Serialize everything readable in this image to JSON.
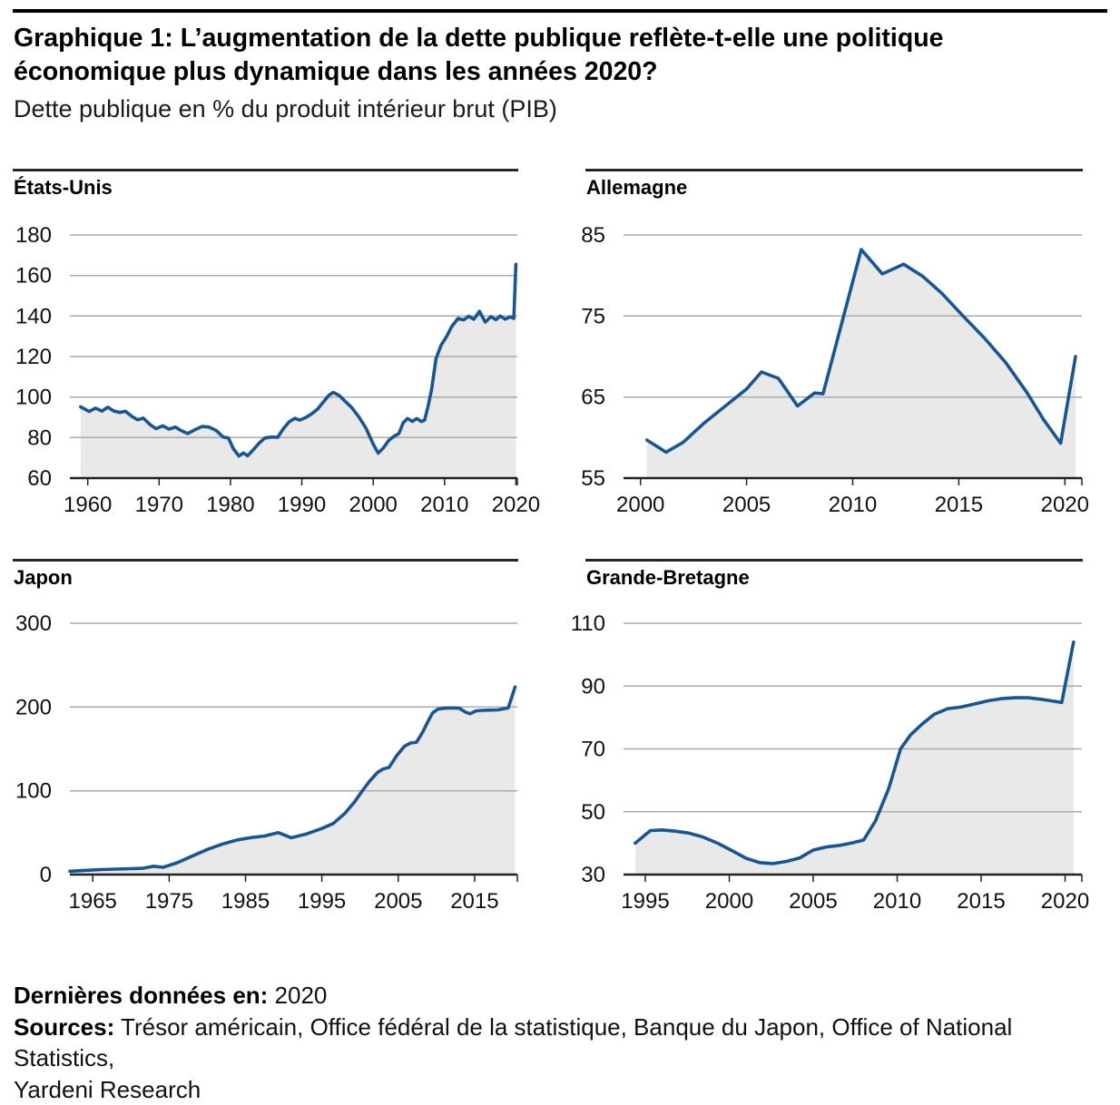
{
  "header": {
    "title_line1": "Graphique 1: L’augmentation de la dette publique reflète-t-elle une politique",
    "title_line2": "économique plus dynamique dans les années 2020?",
    "subtitle": "Dette publique en % du produit intérieur brut (PIB)"
  },
  "style": {
    "line_color": "#175694",
    "fill_color": "#e9e9e9",
    "grid_color": "#ababab",
    "axis_color": "#222222",
    "rule_color": "#000000"
  },
  "footer": {
    "last_data_label": "Dernières données en:",
    "last_data_value": "2020",
    "sources_label": "Sources:",
    "sources_line1": "Trésor américain, Office fédéral de la statistique, Banque du Japon, Office of National Statistics,",
    "sources_line2": "Yardeni Research"
  },
  "chart_data": [
    {
      "type": "area",
      "title": "États-Unis",
      "ylabel": "Dette publique en % du PIB",
      "x_domain": [
        1957.5,
        2020.2
      ],
      "y_domain": [
        60,
        180
      ],
      "y_ticks": [
        60,
        80,
        100,
        120,
        140,
        160,
        180
      ],
      "x_ticks": [
        1960,
        1970,
        1980,
        1990,
        2000,
        2010,
        2020
      ],
      "grid": true,
      "points": [
        [
          1959,
          95.2
        ],
        [
          1960.2,
          92.9
        ],
        [
          1961.1,
          94.5
        ],
        [
          1962,
          93.1
        ],
        [
          1962.8,
          95.0
        ],
        [
          1963.6,
          93.2
        ],
        [
          1964.5,
          92.4
        ],
        [
          1965.3,
          93.0
        ],
        [
          1966.2,
          90.4
        ],
        [
          1967,
          88.8
        ],
        [
          1967.8,
          89.6
        ],
        [
          1968.8,
          86.2
        ],
        [
          1969.6,
          84.4
        ],
        [
          1970.5,
          85.8
        ],
        [
          1971.4,
          84.2
        ],
        [
          1972.3,
          85.2
        ],
        [
          1973,
          83.6
        ],
        [
          1974,
          82.0
        ],
        [
          1975,
          83.8
        ],
        [
          1976,
          85.5
        ],
        [
          1977,
          85.2
        ],
        [
          1978,
          83.5
        ],
        [
          1979,
          80.2
        ],
        [
          1979.7,
          79.9
        ],
        [
          1980.4,
          74.5
        ],
        [
          1981.2,
          70.9
        ],
        [
          1981.8,
          72.4
        ],
        [
          1982.4,
          71.0
        ],
        [
          1983.2,
          74.0
        ],
        [
          1984,
          77.2
        ],
        [
          1984.8,
          79.8
        ],
        [
          1985.8,
          80.3
        ],
        [
          1986.6,
          80.1
        ],
        [
          1987.4,
          84.3
        ],
        [
          1988.2,
          87.7
        ],
        [
          1989,
          89.5
        ],
        [
          1989.7,
          88.6
        ],
        [
          1990.5,
          89.8
        ],
        [
          1991.3,
          91.5
        ],
        [
          1992.2,
          94.0
        ],
        [
          1993,
          97.5
        ],
        [
          1993.8,
          100.9
        ],
        [
          1994.4,
          102.3
        ],
        [
          1995.2,
          100.9
        ],
        [
          1996,
          98.2
        ],
        [
          1997,
          94.8
        ],
        [
          1998,
          90.2
        ],
        [
          1999,
          84.6
        ],
        [
          2000,
          76.8
        ],
        [
          2000.7,
          72.3
        ],
        [
          2001.4,
          74.8
        ],
        [
          2002.2,
          78.7
        ],
        [
          2003,
          80.8
        ],
        [
          2003.6,
          82.0
        ],
        [
          2004.2,
          87.3
        ],
        [
          2004.8,
          89.4
        ],
        [
          2005.5,
          88.0
        ],
        [
          2006.1,
          89.4
        ],
        [
          2006.8,
          87.9
        ],
        [
          2007.2,
          88.6
        ],
        [
          2007.7,
          95.5
        ],
        [
          2008.2,
          104.0
        ],
        [
          2008.8,
          119.0
        ],
        [
          2009.5,
          125.5
        ],
        [
          2010.3,
          130.0
        ],
        [
          2011,
          134.8
        ],
        [
          2011.9,
          138.8
        ],
        [
          2012.7,
          138.1
        ],
        [
          2013.4,
          139.9
        ],
        [
          2014.1,
          138.4
        ],
        [
          2014.9,
          142.3
        ],
        [
          2015.7,
          137.0
        ],
        [
          2016.5,
          139.7
        ],
        [
          2017.2,
          138.2
        ],
        [
          2017.8,
          140.0
        ],
        [
          2018.5,
          138.4
        ],
        [
          2019.2,
          139.6
        ],
        [
          2019.7,
          138.8
        ],
        [
          2020,
          165.5
        ]
      ]
    },
    {
      "type": "area",
      "title": "Allemagne",
      "ylabel": "Dette publique en % du PIB",
      "x_domain": [
        1999.2,
        2020.8
      ],
      "y_domain": [
        55,
        85
      ],
      "y_ticks": [
        55,
        65,
        75,
        85
      ],
      "x_ticks": [
        2000,
        2005,
        2010,
        2015,
        2020
      ],
      "grid": true,
      "points": [
        [
          2000.3,
          59.7
        ],
        [
          2001.2,
          58.2
        ],
        [
          2002,
          59.4
        ],
        [
          2003,
          61.8
        ],
        [
          2004,
          63.9
        ],
        [
          2005,
          66.0
        ],
        [
          2005.7,
          68.1
        ],
        [
          2006.5,
          67.3
        ],
        [
          2007.4,
          63.9
        ],
        [
          2008.2,
          65.5
        ],
        [
          2008.6,
          65.4
        ],
        [
          2010.4,
          83.2
        ],
        [
          2011.4,
          80.2
        ],
        [
          2012.4,
          81.4
        ],
        [
          2013.3,
          79.9
        ],
        [
          2014.2,
          77.8
        ],
        [
          2015.2,
          75.0
        ],
        [
          2016.2,
          72.3
        ],
        [
          2017.2,
          69.3
        ],
        [
          2018.2,
          65.6
        ],
        [
          2019,
          62.2
        ],
        [
          2019.8,
          59.3
        ],
        [
          2020.5,
          70.0
        ]
      ]
    },
    {
      "type": "area",
      "title": "Japon",
      "ylabel": "Dette publique en % du PIB",
      "x_domain": [
        1962,
        2020.6
      ],
      "y_domain": [
        0,
        300
      ],
      "y_ticks": [
        0,
        100,
        200,
        300
      ],
      "x_ticks": [
        1965,
        1975,
        1985,
        1995,
        2005,
        2015
      ],
      "grid": true,
      "points": [
        [
          1962,
          4
        ],
        [
          1964,
          5
        ],
        [
          1966,
          6
        ],
        [
          1968,
          6.5
        ],
        [
          1970,
          7
        ],
        [
          1971.5,
          7.5
        ],
        [
          1973,
          10
        ],
        [
          1974.2,
          8.7
        ],
        [
          1976,
          14
        ],
        [
          1978,
          22
        ],
        [
          1980,
          30
        ],
        [
          1982,
          36.5
        ],
        [
          1984,
          41.5
        ],
        [
          1986,
          44.5
        ],
        [
          1987.5,
          46
        ],
        [
          1989.3,
          50
        ],
        [
          1991,
          44
        ],
        [
          1993,
          48.5
        ],
        [
          1995,
          55
        ],
        [
          1996.5,
          61
        ],
        [
          1998,
          73
        ],
        [
          1999.3,
          87
        ],
        [
          2000.3,
          100
        ],
        [
          2001.3,
          112
        ],
        [
          2002.3,
          122
        ],
        [
          2003,
          126
        ],
        [
          2003.8,
          128
        ],
        [
          2004.8,
          142
        ],
        [
          2005.8,
          153
        ],
        [
          2006.6,
          157
        ],
        [
          2007.4,
          158
        ],
        [
          2008.2,
          170
        ],
        [
          2008.9,
          183
        ],
        [
          2009.5,
          193
        ],
        [
          2010.2,
          197.5
        ],
        [
          2011,
          198.5
        ],
        [
          2012,
          199
        ],
        [
          2013,
          198.5
        ],
        [
          2013.8,
          194
        ],
        [
          2014.4,
          192
        ],
        [
          2015.2,
          195.5
        ],
        [
          2016,
          196
        ],
        [
          2017,
          196.3
        ],
        [
          2018,
          196.6
        ],
        [
          2018.6,
          197.5
        ],
        [
          2019.4,
          199
        ],
        [
          2020.3,
          224
        ]
      ]
    },
    {
      "type": "area",
      "title": "Grande-Bretagne",
      "ylabel": "Dette publique en % du PIB",
      "x_domain": [
        1993.7,
        2021.0
      ],
      "y_domain": [
        30,
        110
      ],
      "y_ticks": [
        30,
        50,
        70,
        90,
        110
      ],
      "x_ticks": [
        1995,
        2000,
        2005,
        2010,
        2015,
        2020
      ],
      "grid": true,
      "points": [
        [
          1994.4,
          40
        ],
        [
          1995.3,
          44
        ],
        [
          1996,
          44.2
        ],
        [
          1996.8,
          43.8
        ],
        [
          1997.6,
          43.2
        ],
        [
          1998.4,
          42
        ],
        [
          1999.3,
          40
        ],
        [
          2000.2,
          37.5
        ],
        [
          2001,
          35.2
        ],
        [
          2001.8,
          33.8
        ],
        [
          2002.6,
          33.5
        ],
        [
          2003.4,
          34.2
        ],
        [
          2004.2,
          35.3
        ],
        [
          2005,
          37.8
        ],
        [
          2005.8,
          38.8
        ],
        [
          2006.6,
          39.3
        ],
        [
          2007.4,
          40.2
        ],
        [
          2008,
          41
        ],
        [
          2008.7,
          47
        ],
        [
          2009.5,
          57.5
        ],
        [
          2010.2,
          70
        ],
        [
          2010.8,
          74.5
        ],
        [
          2011.5,
          78
        ],
        [
          2012.2,
          81
        ],
        [
          2013,
          82.8
        ],
        [
          2013.8,
          83.3
        ],
        [
          2014.6,
          84.3
        ],
        [
          2015.4,
          85.3
        ],
        [
          2016.2,
          86
        ],
        [
          2017,
          86.3
        ],
        [
          2017.8,
          86.3
        ],
        [
          2018.6,
          85.8
        ],
        [
          2019.3,
          85.2
        ],
        [
          2019.8,
          84.8
        ],
        [
          2020.5,
          104
        ]
      ]
    }
  ]
}
